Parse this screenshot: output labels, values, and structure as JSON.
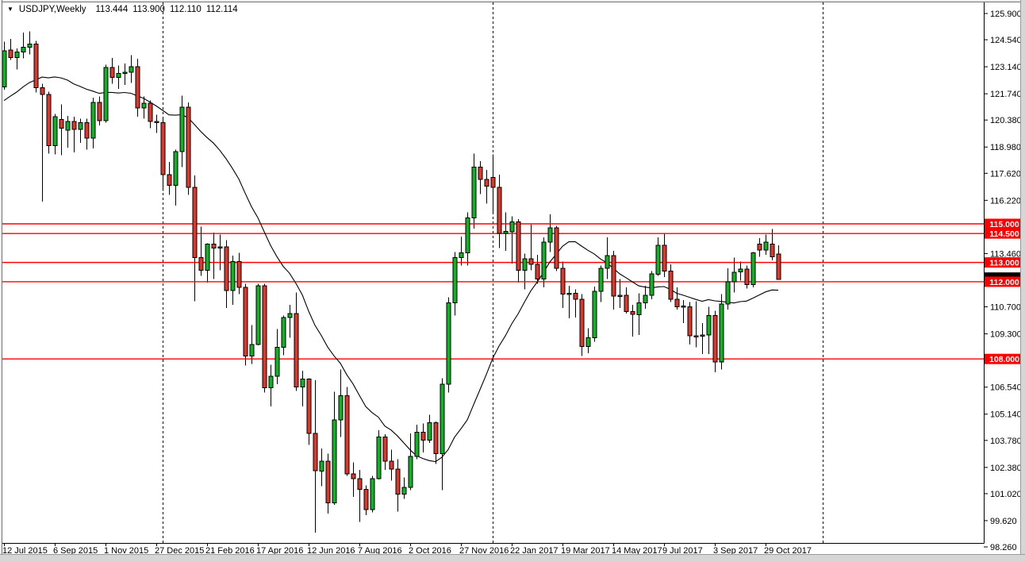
{
  "window": {
    "symbol": "USDJPY,Weekly",
    "ohlc": {
      "open": "113.444",
      "high": "113.900",
      "low": "112.110",
      "close": "112.114"
    }
  },
  "price_axis": {
    "ticks": [
      "125.900",
      "124.540",
      "123.140",
      "121.740",
      "120.380",
      "118.980",
      "117.620",
      "116.220",
      "113.460",
      "110.700",
      "109.300",
      "106.540",
      "105.140",
      "103.780",
      "102.380",
      "101.020",
      "99.620",
      "98.260"
    ]
  },
  "time_axis": {
    "labels": [
      "12 Jul 2015",
      "6 Sep 2015",
      "1 Nov 2015",
      "27 Dec 2015",
      "21 Feb 2016",
      "17 Apr 2016",
      "12 Jun 2016",
      "7 Aug 2016",
      "2 Oct 2016",
      "27 Nov 2016",
      "22 Jan 2017",
      "19 Mar 2017",
      "14 May 2017",
      "9 Jul 2017",
      "3 Sep 2017",
      "29 Oct 2017"
    ],
    "week_step": 8
  },
  "hlines": [
    {
      "label": "115.000",
      "value": 115.0
    },
    {
      "label": "114.500",
      "value": 114.5
    },
    {
      "label": "113.000",
      "value": 113.0
    },
    {
      "label": "112.000",
      "value": 112.0
    },
    {
      "label": "108.000",
      "value": 108.0
    }
  ],
  "current_price": {
    "label": "112.114",
    "value": 112.114
  },
  "colors": {
    "bull": "#12b128",
    "bear": "#d93a2f",
    "wick": "#000000",
    "outline": "#000000",
    "hline": "#ff0000",
    "ma": "#000000",
    "axis": "#000000",
    "tag_bg": "#ff0000",
    "tag_text": "#ffffff",
    "current_tag_bg": "#000000",
    "separator": "#000000"
  },
  "chart_data": {
    "type": "candlestick",
    "title": "USDJPY,Weekly",
    "timeframe": "W1",
    "ylim": [
      98.26,
      125.9
    ],
    "x_first_label": "12 Jul 2015",
    "x_last_label": "29 Oct 2017",
    "year_separator_weeks": [
      25,
      77,
      129
    ],
    "ma": {
      "type": "sma",
      "period": 20,
      "pre_closes": [
        118.6,
        119.1,
        119.6,
        118.9,
        119.8,
        119.2,
        118.8,
        119.9,
        119.5,
        121.0,
        122.6,
        123.8,
        122.9,
        122.3,
        123.3,
        122.7,
        122.2,
        122.5,
        123.4,
        122.3
      ]
    },
    "candles": [
      [
        122.1,
        124.45,
        121.95,
        123.97
      ],
      [
        124.0,
        124.58,
        123.5,
        123.62
      ],
      [
        123.62,
        124.1,
        123.0,
        123.9
      ],
      [
        123.9,
        124.92,
        123.58,
        124.15
      ],
      [
        124.15,
        124.98,
        123.78,
        124.32
      ],
      [
        124.32,
        124.48,
        121.8,
        122.05
      ],
      [
        122.05,
        122.25,
        116.15,
        121.7
      ],
      [
        121.7,
        121.85,
        118.65,
        119.05
      ],
      [
        119.05,
        120.7,
        118.6,
        120.55
      ],
      [
        120.4,
        121.2,
        118.55,
        119.95
      ],
      [
        119.85,
        120.6,
        118.95,
        120.3
      ],
      [
        120.3,
        120.55,
        118.7,
        119.9
      ],
      [
        119.9,
        120.45,
        119.2,
        120.25
      ],
      [
        120.25,
        120.45,
        118.85,
        119.45
      ],
      [
        119.45,
        121.55,
        118.9,
        121.3
      ],
      [
        121.3,
        121.6,
        120.1,
        120.35
      ],
      [
        120.35,
        123.25,
        120.25,
        123.1
      ],
      [
        123.1,
        123.6,
        122.25,
        122.6
      ],
      [
        122.6,
        123.2,
        122.0,
        122.8
      ],
      [
        122.8,
        123.3,
        122.2,
        122.85
      ],
      [
        122.85,
        123.75,
        122.3,
        123.15
      ],
      [
        123.15,
        123.55,
        120.55,
        121.0
      ],
      [
        121.0,
        121.6,
        120.45,
        121.25
      ],
      [
        121.25,
        121.4,
        119.95,
        120.3
      ],
      [
        120.3,
        120.65,
        119.7,
        120.25
      ],
      [
        120.25,
        120.45,
        116.7,
        117.55
      ],
      [
        117.55,
        118.2,
        116.5,
        117.0
      ],
      [
        117.0,
        118.85,
        115.95,
        118.75
      ],
      [
        118.75,
        121.65,
        117.95,
        121.05
      ],
      [
        121.05,
        121.3,
        116.5,
        116.9
      ],
      [
        116.9,
        117.5,
        110.98,
        113.25
      ],
      [
        113.25,
        114.85,
        112.3,
        112.6
      ],
      [
        112.6,
        114.0,
        111.95,
        113.95
      ],
      [
        113.95,
        114.55,
        112.15,
        113.75
      ],
      [
        113.75,
        114.45,
        112.6,
        113.8
      ],
      [
        113.8,
        114.15,
        110.65,
        111.55
      ],
      [
        111.55,
        113.35,
        110.8,
        113.05
      ],
      [
        113.05,
        113.5,
        111.35,
        111.7
      ],
      [
        111.7,
        111.9,
        107.65,
        108.15
      ],
      [
        108.15,
        109.75,
        107.75,
        108.75
      ],
      [
        108.75,
        111.9,
        108.7,
        111.8
      ],
      [
        111.8,
        111.9,
        106.25,
        106.5
      ],
      [
        106.5,
        107.7,
        105.55,
        107.1
      ],
      [
        107.1,
        109.55,
        106.7,
        108.6
      ],
      [
        108.6,
        110.25,
        108.2,
        110.15
      ],
      [
        110.15,
        110.8,
        109.1,
        110.35
      ],
      [
        110.35,
        111.45,
        106.35,
        106.55
      ],
      [
        106.55,
        107.4,
        105.55,
        106.95
      ],
      [
        106.95,
        107.0,
        103.55,
        104.15
      ],
      [
        104.15,
        106.9,
        99.0,
        102.2
      ],
      [
        102.2,
        103.35,
        101.4,
        102.7
      ],
      [
        102.7,
        103.1,
        99.98,
        100.55
      ],
      [
        100.55,
        106.3,
        100.45,
        104.85
      ],
      [
        104.85,
        107.45,
        103.95,
        106.1
      ],
      [
        106.1,
        106.55,
        101.95,
        102.05
      ],
      [
        102.05,
        102.65,
        100.85,
        101.8
      ],
      [
        101.8,
        102.25,
        99.55,
        101.25
      ],
      [
        101.25,
        101.45,
        99.9,
        100.2
      ],
      [
        100.2,
        101.95,
        100.05,
        101.8
      ],
      [
        101.8,
        104.3,
        101.75,
        103.95
      ],
      [
        103.95,
        104.1,
        102.25,
        102.7
      ],
      [
        102.7,
        103.3,
        101.7,
        102.3
      ],
      [
        102.3,
        102.8,
        100.1,
        101.0
      ],
      [
        101.0,
        101.85,
        100.75,
        101.35
      ],
      [
        101.35,
        104.15,
        101.2,
        102.95
      ],
      [
        102.95,
        104.6,
        102.8,
        104.2
      ],
      [
        104.2,
        104.65,
        103.15,
        103.8
      ],
      [
        103.8,
        105.1,
        103.65,
        104.7
      ],
      [
        104.7,
        104.75,
        102.55,
        103.1
      ],
      [
        103.1,
        107.0,
        101.2,
        106.7
      ],
      [
        106.7,
        111.2,
        106.25,
        110.9
      ],
      [
        110.9,
        113.55,
        110.25,
        113.25
      ],
      [
        113.25,
        114.35,
        112.85,
        113.5
      ],
      [
        113.5,
        115.6,
        112.85,
        115.3
      ],
      [
        115.3,
        118.65,
        114.75,
        117.95
      ],
      [
        117.95,
        118.25,
        116.55,
        117.3
      ],
      [
        117.3,
        117.8,
        116.05,
        116.95
      ],
      [
        117.4,
        118.6,
        115.6,
        116.9
      ],
      [
        116.9,
        117.55,
        113.75,
        114.5
      ],
      [
        114.5,
        115.6,
        113.6,
        114.6
      ],
      [
        114.6,
        115.4,
        112.95,
        115.1
      ],
      [
        115.1,
        115.25,
        111.95,
        112.6
      ],
      [
        112.6,
        113.45,
        111.6,
        113.2
      ],
      [
        113.2,
        114.95,
        112.6,
        112.9
      ],
      [
        112.9,
        113.4,
        111.9,
        112.15
      ],
      [
        112.15,
        114.3,
        111.7,
        114.05
      ],
      [
        114.05,
        115.5,
        113.55,
        114.8
      ],
      [
        114.8,
        114.9,
        112.55,
        112.7
      ],
      [
        112.7,
        113.05,
        110.65,
        111.35
      ],
      [
        111.35,
        111.8,
        110.1,
        111.4
      ],
      [
        111.4,
        111.6,
        110.15,
        111.1
      ],
      [
        111.1,
        111.35,
        108.15,
        108.65
      ],
      [
        108.65,
        109.6,
        108.3,
        109.1
      ],
      [
        109.1,
        111.75,
        108.9,
        111.5
      ],
      [
        111.5,
        112.85,
        110.95,
        112.7
      ],
      [
        112.7,
        114.3,
        112.15,
        113.35
      ],
      [
        113.35,
        113.6,
        110.55,
        111.25
      ],
      [
        111.25,
        112.15,
        110.65,
        111.3
      ],
      [
        111.3,
        111.7,
        110.35,
        110.45
      ],
      [
        110.45,
        110.8,
        109.15,
        110.3
      ],
      [
        110.3,
        111.4,
        109.25,
        110.9
      ],
      [
        110.9,
        111.8,
        110.6,
        111.3
      ],
      [
        111.3,
        112.55,
        111.1,
        112.4
      ],
      [
        112.4,
        114.3,
        112.3,
        113.9
      ],
      [
        113.9,
        114.5,
        112.25,
        112.55
      ],
      [
        112.55,
        112.9,
        110.95,
        111.1
      ],
      [
        111.1,
        111.7,
        110.55,
        110.7
      ],
      [
        110.7,
        111.05,
        109.85,
        110.75
      ],
      [
        110.7,
        110.95,
        108.75,
        109.2
      ],
      [
        109.2,
        111.0,
        108.6,
        109.18
      ],
      [
        109.18,
        109.85,
        108.25,
        109.25
      ],
      [
        109.25,
        110.7,
        108.25,
        110.25
      ],
      [
        110.25,
        110.5,
        107.3,
        107.85
      ],
      [
        107.85,
        111.35,
        107.45,
        110.85
      ],
      [
        110.85,
        112.7,
        110.55,
        112.0
      ],
      [
        112.0,
        113.25,
        111.45,
        112.5
      ],
      [
        112.5,
        113.05,
        112.05,
        112.65
      ],
      [
        112.65,
        112.85,
        111.65,
        111.85
      ],
      [
        111.85,
        113.55,
        111.7,
        113.5
      ],
      [
        113.95,
        114.25,
        113.3,
        113.65
      ],
      [
        113.65,
        114.45,
        113.4,
        114.05
      ],
      [
        113.95,
        114.73,
        113.1,
        113.3
      ],
      [
        113.444,
        113.9,
        112.11,
        112.114
      ]
    ]
  }
}
